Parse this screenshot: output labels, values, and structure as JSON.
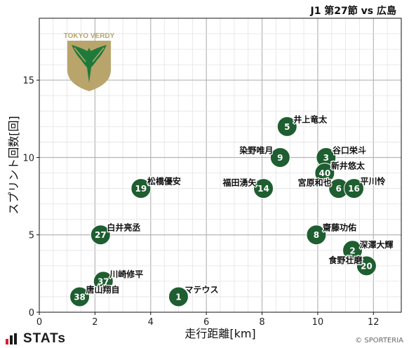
{
  "header": {
    "title": "J1 第27節 vs 広島"
  },
  "footer": {
    "brand": "STATs",
    "copyright": "© SPORTERIA"
  },
  "logo": {
    "text": "TOKYO VERDY",
    "icon": "eagle-emblem-icon"
  },
  "colors": {
    "point": "#1e5e30",
    "grid": "#cfcfcf",
    "logo_gold": "#b9a46b",
    "logo_green": "#1e7a3a"
  },
  "chart_data": {
    "type": "scatter",
    "title": "J1 第27節 vs 広島",
    "xlabel": "走行距離[km]",
    "ylabel": "スプリント回数[回]",
    "xlim": [
      0,
      13
    ],
    "ylim": [
      0,
      19
    ],
    "xticks": [
      0,
      2,
      4,
      6,
      8,
      10,
      12
    ],
    "yticks": [
      0,
      5,
      10,
      15
    ],
    "grid": true,
    "points": [
      {
        "num": "5",
        "name": "井上竜太",
        "x": 8.9,
        "y": 12
      },
      {
        "num": "3",
        "name": "谷口栄斗",
        "x": 10.3,
        "y": 10
      },
      {
        "num": "9",
        "name": "染野唯月",
        "x": 8.65,
        "y": 10
      },
      {
        "num": "40",
        "name": "新井悠太",
        "x": 10.25,
        "y": 9
      },
      {
        "num": "19",
        "name": "松橋優安",
        "x": 3.65,
        "y": 8
      },
      {
        "num": "14",
        "name": "福田湧矢",
        "x": 8.05,
        "y": 8
      },
      {
        "num": "6",
        "name": "宮原和也",
        "x": 10.75,
        "y": 8
      },
      {
        "num": "16",
        "name": "平川怜",
        "x": 11.3,
        "y": 8
      },
      {
        "num": "27",
        "name": "白井亮丞",
        "x": 2.2,
        "y": 5
      },
      {
        "num": "8",
        "name": "齋藤功佑",
        "x": 9.95,
        "y": 5
      },
      {
        "num": "2",
        "name": "深澤大輝",
        "x": 11.25,
        "y": 4
      },
      {
        "num": "20",
        "name": "食野壮磨",
        "x": 11.75,
        "y": 3
      },
      {
        "num": "37",
        "name": "川崎修平",
        "x": 2.3,
        "y": 2
      },
      {
        "num": "38",
        "name": "唐山翔自",
        "x": 1.45,
        "y": 1
      },
      {
        "num": "1",
        "name": "マテウス",
        "x": 5.0,
        "y": 1
      }
    ]
  }
}
